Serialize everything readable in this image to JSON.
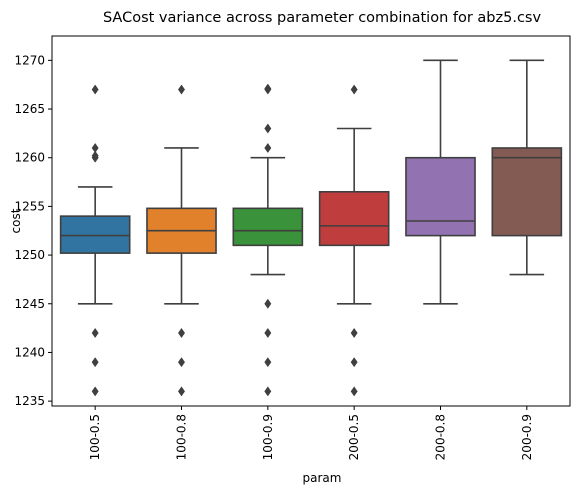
{
  "chart_data": {
    "type": "box",
    "title": "SACost variance across parameter combination for abz5.csv",
    "xlabel": "param",
    "ylabel": "cost",
    "ylim": [
      1234.5,
      1272.5
    ],
    "yticks": [
      1235,
      1240,
      1245,
      1250,
      1255,
      1260,
      1265,
      1270
    ],
    "grid": false,
    "categories": [
      "100-0.5",
      "100-0.8",
      "100-0.9",
      "200-0.5",
      "200-0.8",
      "200-0.9"
    ],
    "boxes": [
      {
        "category": "100-0.5",
        "whisker_low": 1245,
        "q1": 1250.2,
        "median": 1252,
        "q3": 1254,
        "whisker_high": 1257,
        "outliers": [
          1236,
          1239,
          1242,
          1260,
          1260.2,
          1261,
          1267
        ],
        "color": "#3274a1"
      },
      {
        "category": "100-0.8",
        "whisker_low": 1245,
        "q1": 1250.2,
        "median": 1252.5,
        "q3": 1254.8,
        "whisker_high": 1261,
        "outliers": [
          1236,
          1239,
          1242,
          1267
        ],
        "color": "#e1812c"
      },
      {
        "category": "100-0.9",
        "whisker_low": 1248,
        "q1": 1251,
        "median": 1252.5,
        "q3": 1254.8,
        "whisker_high": 1260,
        "outliers": [
          1236,
          1239,
          1242,
          1245,
          1261,
          1263,
          1267,
          1267.1
        ],
        "color": "#3a923a"
      },
      {
        "category": "200-0.5",
        "whisker_low": 1245,
        "q1": 1251,
        "median": 1253,
        "q3": 1256.5,
        "whisker_high": 1263,
        "outliers": [
          1236,
          1239,
          1242,
          1267
        ],
        "color": "#c03d3e"
      },
      {
        "category": "200-0.8",
        "whisker_low": 1245,
        "q1": 1252,
        "median": 1253.5,
        "q3": 1260,
        "whisker_high": 1270,
        "outliers": [],
        "color": "#9372b2"
      },
      {
        "category": "200-0.9",
        "whisker_low": 1248,
        "q1": 1252,
        "median": 1260,
        "q3": 1261,
        "whisker_high": 1270,
        "outliers": [],
        "color": "#845b53"
      }
    ],
    "line_color": "#3f3f3f"
  }
}
